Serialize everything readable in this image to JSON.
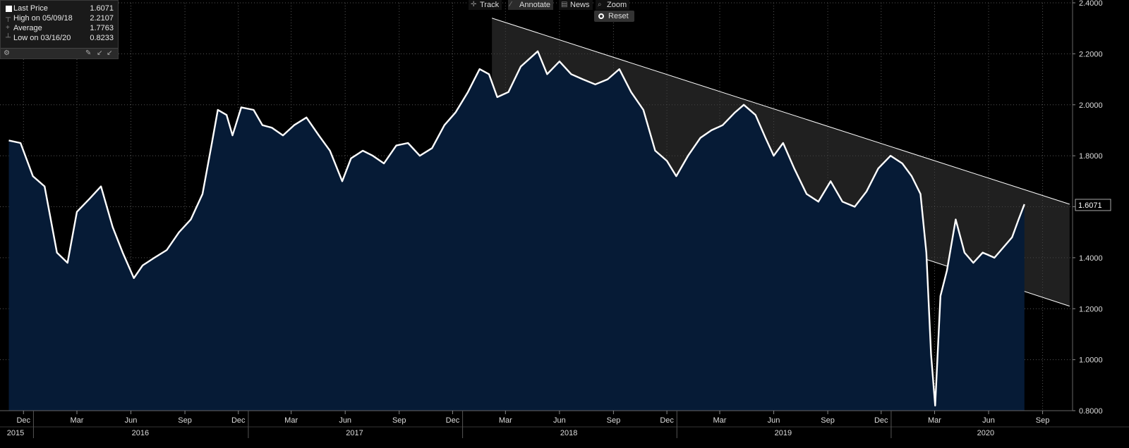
{
  "legend": {
    "rows": [
      {
        "label": "Last Price",
        "value": "1.6071"
      },
      {
        "label": "High on 05/09/18",
        "value": "2.2107"
      },
      {
        "label": "Average",
        "value": "1.7763"
      },
      {
        "label": "Low on 03/16/20",
        "value": "0.8233"
      }
    ]
  },
  "toolbar": {
    "track": "Track",
    "annotate": "Annotate",
    "news": "News",
    "zoom": "Zoom",
    "reset": "Reset"
  },
  "colors": {
    "background": "#000000",
    "area_fill": "#061b36",
    "channel_fill": "#3a3a3a",
    "line": "#ffffff",
    "grid": "#555555"
  },
  "chart_data": {
    "type": "area",
    "title": "",
    "xlabel": "",
    "ylabel": "",
    "ylim": [
      0.8,
      2.4
    ],
    "y_ticks": [
      "0.8000",
      "1.0000",
      "1.2000",
      "1.4000",
      "1.6000",
      "1.8000",
      "2.0000",
      "2.2000",
      "2.4000"
    ],
    "x_month_ticks": [
      "Dec",
      "Mar",
      "Jun",
      "Sep",
      "Dec",
      "Mar",
      "Jun",
      "Sep",
      "Dec",
      "Mar",
      "Jun",
      "Sep",
      "Dec",
      "Mar",
      "Jun",
      "Sep",
      "Dec",
      "Mar",
      "Jun",
      "Sep"
    ],
    "x_year_labels": [
      "2015",
      "2016",
      "2017",
      "2018",
      "2019",
      "2020"
    ],
    "last_price_label": "1.6071",
    "grid": true,
    "legend_position": "top-left",
    "series": [
      {
        "name": "Last Price",
        "x": [
          "2015-11-20",
          "2015-12-10",
          "2015-12-31",
          "2016-01-20",
          "2016-02-10",
          "2016-02-28",
          "2016-03-15",
          "2016-04-05",
          "2016-04-25",
          "2016-05-15",
          "2016-06-01",
          "2016-06-20",
          "2016-07-05",
          "2016-07-25",
          "2016-08-15",
          "2016-09-05",
          "2016-09-25",
          "2016-10-15",
          "2016-10-31",
          "2016-11-10",
          "2016-11-25",
          "2016-12-05",
          "2016-12-20",
          "2017-01-10",
          "2017-01-25",
          "2017-02-10",
          "2017-03-01",
          "2017-03-20",
          "2017-04-10",
          "2017-05-01",
          "2017-05-20",
          "2017-06-10",
          "2017-06-25",
          "2017-07-15",
          "2017-08-01",
          "2017-08-20",
          "2017-09-10",
          "2017-09-30",
          "2017-10-20",
          "2017-11-10",
          "2017-12-01",
          "2017-12-20",
          "2018-01-10",
          "2018-01-30",
          "2018-02-15",
          "2018-03-01",
          "2018-03-20",
          "2018-04-10",
          "2018-05-09",
          "2018-05-25",
          "2018-06-15",
          "2018-07-05",
          "2018-07-25",
          "2018-08-15",
          "2018-09-05",
          "2018-09-25",
          "2018-10-15",
          "2018-11-05",
          "2018-11-25",
          "2018-12-15",
          "2018-12-31",
          "2019-01-20",
          "2019-02-10",
          "2019-03-01",
          "2019-03-20",
          "2019-04-10",
          "2019-04-25",
          "2019-05-15",
          "2019-06-01",
          "2019-06-15",
          "2019-07-01",
          "2019-07-20",
          "2019-08-10",
          "2019-08-30",
          "2019-09-20",
          "2019-10-10",
          "2019-10-31",
          "2019-11-20",
          "2019-12-10",
          "2019-12-31",
          "2020-01-20",
          "2020-02-05",
          "2020-02-20",
          "2020-03-01",
          "2020-03-09",
          "2020-03-16",
          "2020-03-25",
          "2020-04-05",
          "2020-04-20",
          "2020-05-05",
          "2020-05-20",
          "2020-06-05",
          "2020-06-25",
          "2020-07-10",
          "2020-07-25",
          "2020-08-05",
          "2020-08-15"
        ],
        "values": [
          1.86,
          1.85,
          1.72,
          1.68,
          1.42,
          1.38,
          1.58,
          1.63,
          1.68,
          1.52,
          1.42,
          1.32,
          1.37,
          1.4,
          1.43,
          1.5,
          1.55,
          1.65,
          1.85,
          1.98,
          1.96,
          1.88,
          1.99,
          1.98,
          1.92,
          1.91,
          1.88,
          1.92,
          1.95,
          1.88,
          1.82,
          1.7,
          1.79,
          1.82,
          1.8,
          1.77,
          1.84,
          1.85,
          1.8,
          1.83,
          1.92,
          1.97,
          2.05,
          2.14,
          2.12,
          2.03,
          2.05,
          2.15,
          2.21,
          2.12,
          2.17,
          2.12,
          2.1,
          2.08,
          2.1,
          2.14,
          2.05,
          1.98,
          1.82,
          1.78,
          1.72,
          1.8,
          1.87,
          1.9,
          1.92,
          1.97,
          2.0,
          1.96,
          1.87,
          1.8,
          1.85,
          1.75,
          1.65,
          1.62,
          1.7,
          1.62,
          1.6,
          1.66,
          1.75,
          1.8,
          1.77,
          1.72,
          1.65,
          1.42,
          1.02,
          0.82,
          1.25,
          1.35,
          1.55,
          1.42,
          1.38,
          1.42,
          1.4,
          1.44,
          1.48,
          1.55,
          1.61
        ]
      }
    ],
    "channel": {
      "upper": [
        {
          "x": "2018-02-20",
          "y": 2.34
        },
        {
          "x": "2020-10-31",
          "y": 1.61
        }
      ],
      "lower": [
        {
          "x": "2018-02-20",
          "y": 1.95
        },
        {
          "x": "2020-10-31",
          "y": 1.21
        }
      ]
    }
  }
}
